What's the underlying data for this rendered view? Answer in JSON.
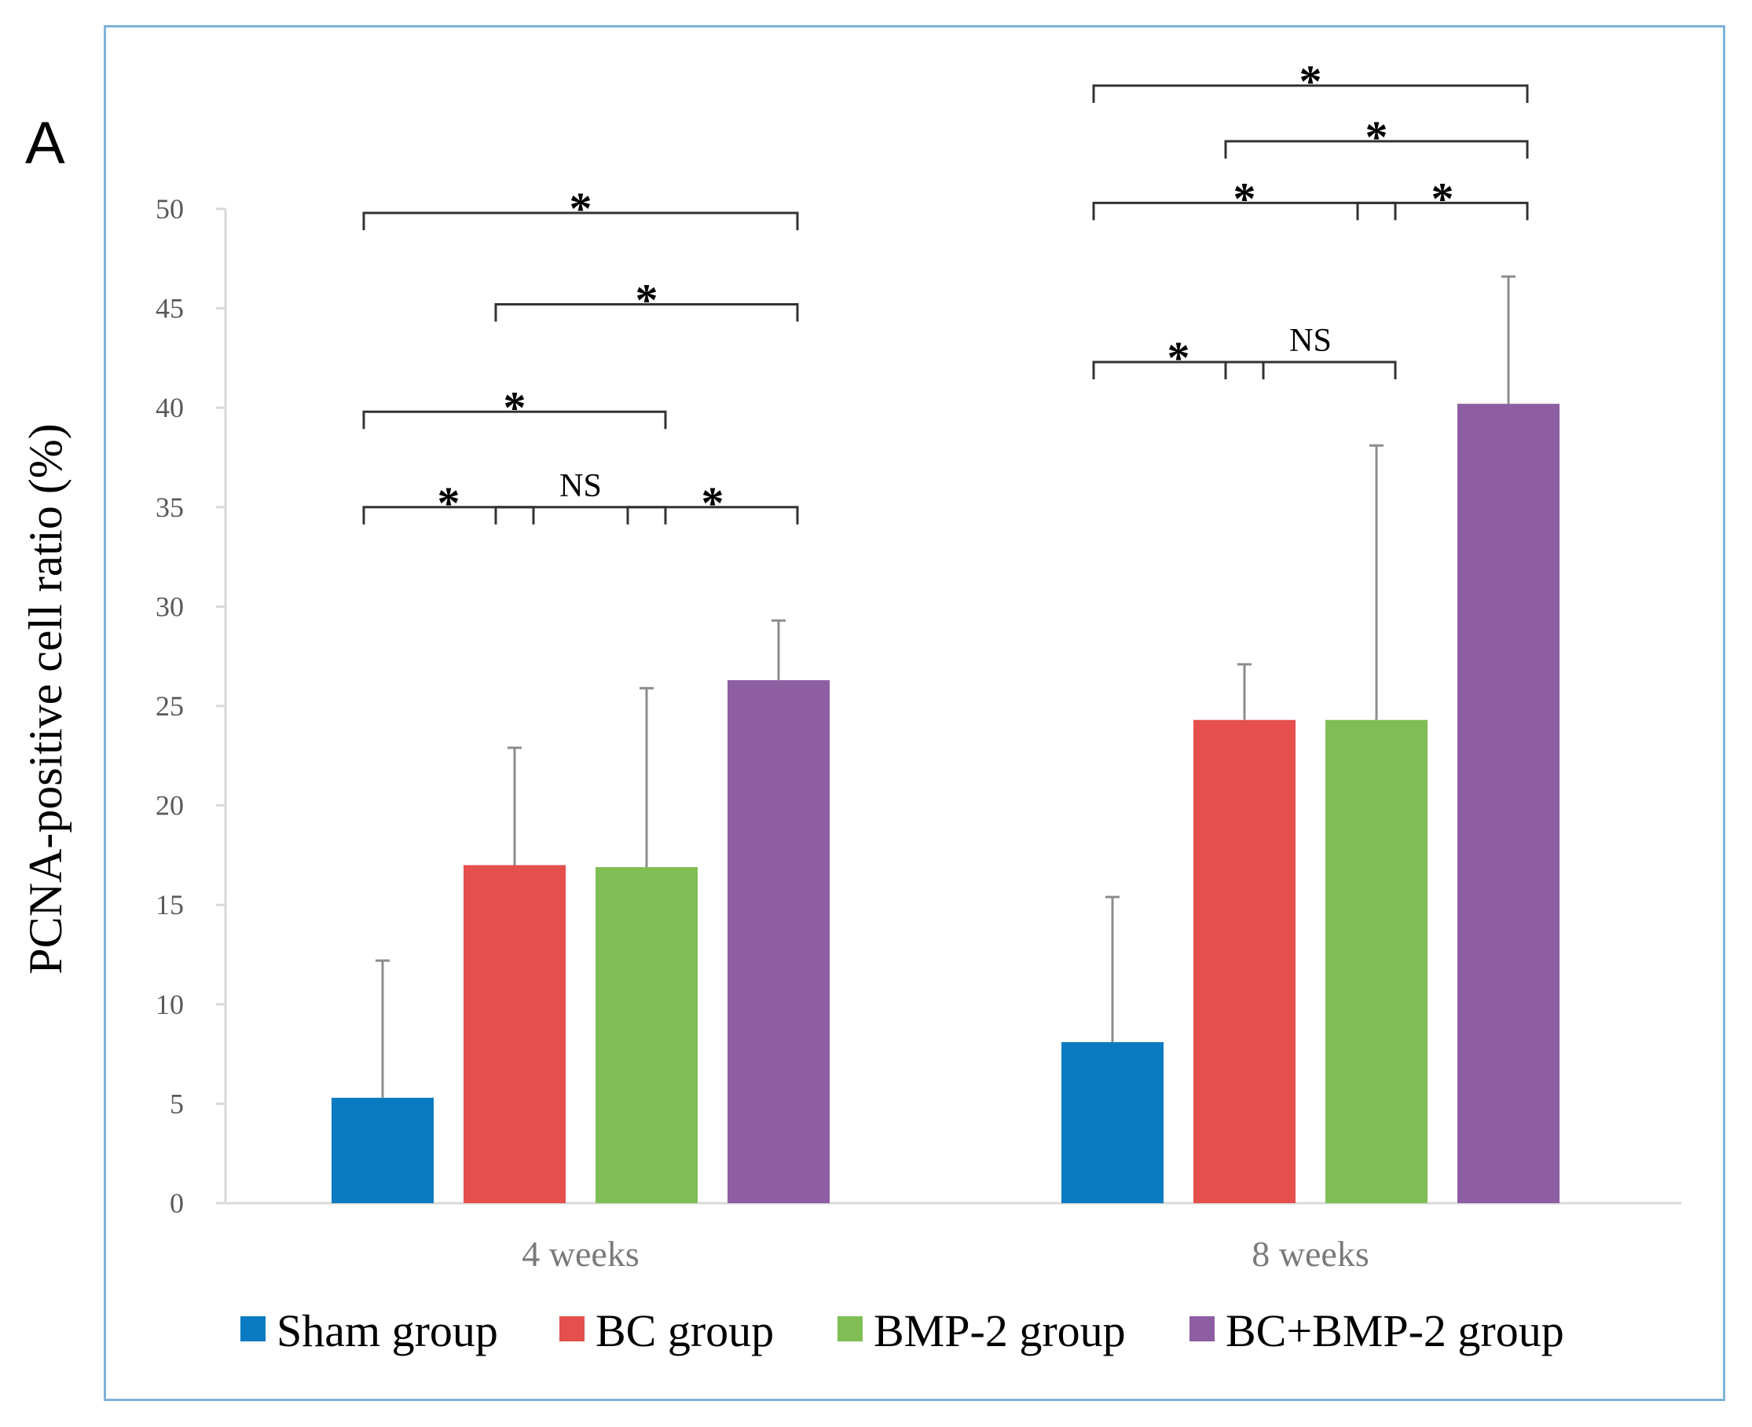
{
  "panel_label": "A",
  "chart_data": {
    "type": "bar",
    "title": "",
    "xlabel": "",
    "ylabel": "PCNA-positive cell ratio (%)",
    "ylim": [
      0,
      50
    ],
    "yticks": [
      0,
      5,
      10,
      15,
      20,
      25,
      30,
      35,
      40,
      45,
      50
    ],
    "categories": [
      "4 weeks",
      "8 weeks"
    ],
    "series": [
      {
        "name": "Sham group",
        "color": "#0a7ac1",
        "values": [
          5.3,
          8.1
        ],
        "errors": [
          6.9,
          7.3
        ]
      },
      {
        "name": "BC group",
        "color": "#e5504d",
        "values": [
          17.0,
          24.3
        ],
        "errors": [
          5.9,
          2.8
        ]
      },
      {
        "name": "BMP-2 group",
        "color": "#80bd54",
        "values": [
          16.9,
          24.3
        ],
        "errors": [
          9.0,
          13.8
        ]
      },
      {
        "name": "BC+BMP-2 group",
        "color": "#8e5ea2",
        "values": [
          26.3,
          40.2
        ],
        "errors": [
          3.0,
          6.4
        ]
      }
    ],
    "significance": [
      {
        "category": 0,
        "from": 0,
        "to": 1,
        "label": "*",
        "level": 35
      },
      {
        "category": 0,
        "from": 1,
        "to": 2,
        "label": "NS",
        "level": 35
      },
      {
        "category": 0,
        "from": 2,
        "to": 3,
        "label": "*",
        "level": 35
      },
      {
        "category": 0,
        "from": 0,
        "to": 2,
        "label": "*",
        "level": 39.8
      },
      {
        "category": 0,
        "from": 1,
        "to": 3,
        "label": "*",
        "level": 45.2
      },
      {
        "category": 0,
        "from": 0,
        "to": 3,
        "label": "*",
        "level": 49.8
      },
      {
        "category": 1,
        "from": 0,
        "to": 1,
        "label": "*",
        "level": 42.3
      },
      {
        "category": 1,
        "from": 1,
        "to": 2,
        "label": "NS",
        "level": 42.3
      },
      {
        "category": 1,
        "from": 0,
        "to": 2,
        "label": "*",
        "level": 50.3
      },
      {
        "category": 1,
        "from": 2,
        "to": 3,
        "label": "*",
        "level": 50.3
      },
      {
        "category": 1,
        "from": 1,
        "to": 3,
        "label": "*",
        "level": 53.4
      },
      {
        "category": 1,
        "from": 0,
        "to": 3,
        "label": "*",
        "level": 56.2
      }
    ]
  }
}
